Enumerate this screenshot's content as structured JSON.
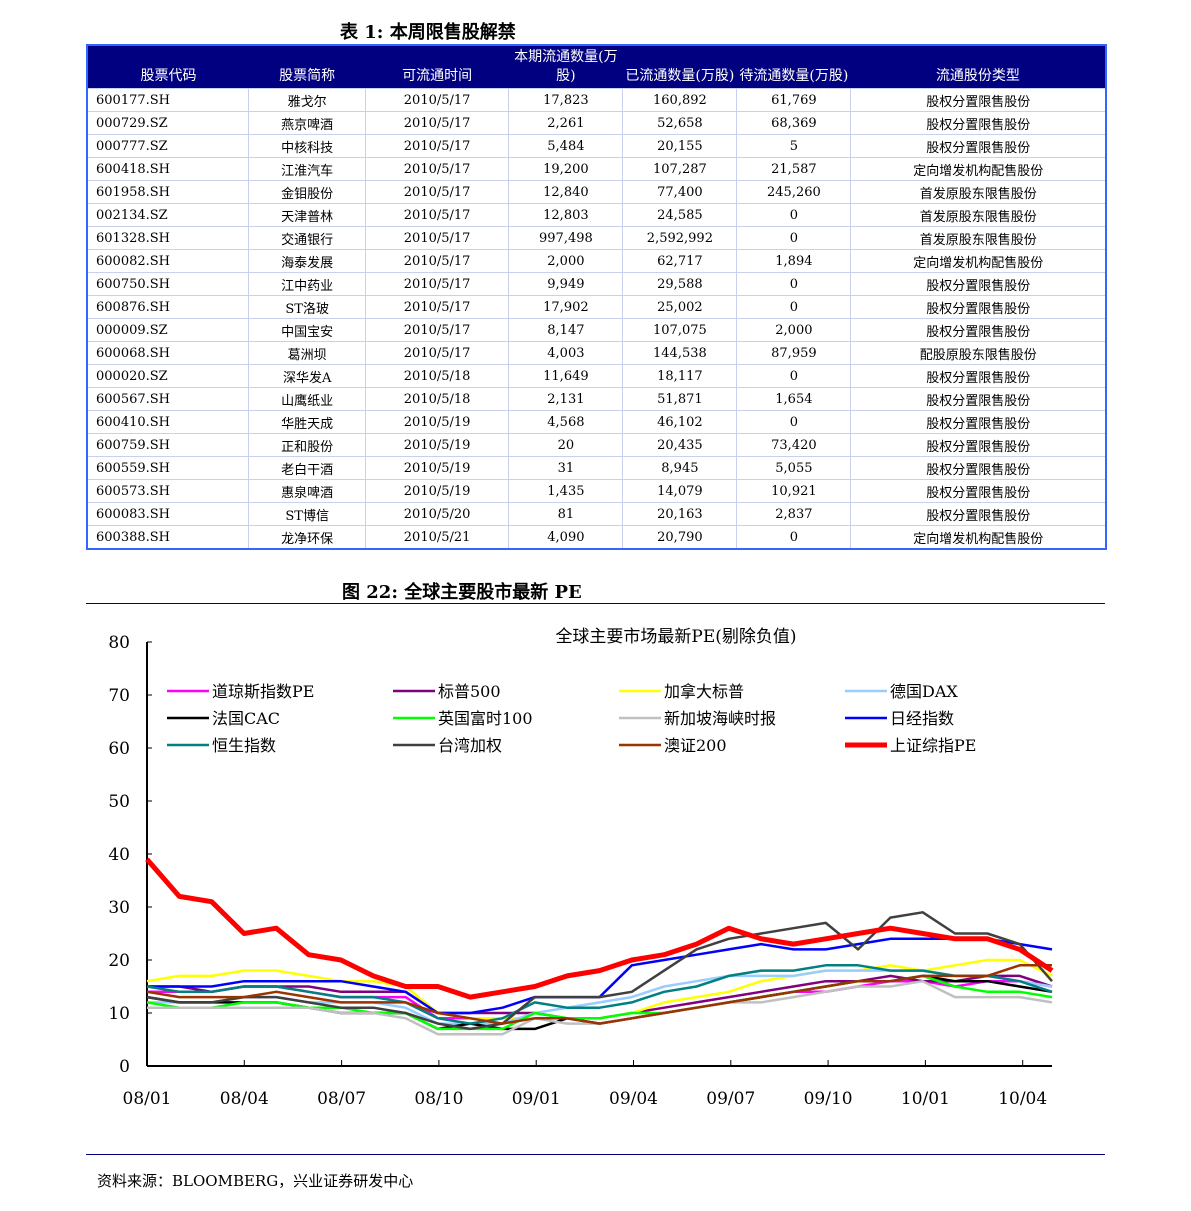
{
  "table": {
    "title": "表 1: 本周限售股解禁",
    "headers": [
      "股票代码",
      "股票简称",
      "可流通时间",
      "本期流通数量(万股)",
      "已流通数量(万股)",
      "待流通数量(万股)",
      "流通股份类型"
    ],
    "rows": [
      [
        "600177.SH",
        "雅戈尔",
        "2010/5/17",
        "17,823",
        "160,892",
        "61,769",
        "股权分置限售股份"
      ],
      [
        "000729.SZ",
        "燕京啤酒",
        "2010/5/17",
        "2,261",
        "52,658",
        "68,369",
        "股权分置限售股份"
      ],
      [
        "000777.SZ",
        "中核科技",
        "2010/5/17",
        "5,484",
        "20,155",
        "5",
        "股权分置限售股份"
      ],
      [
        "600418.SH",
        "江淮汽车",
        "2010/5/17",
        "19,200",
        "107,287",
        "21,587",
        "定向增发机构配售股份"
      ],
      [
        "601958.SH",
        "金钼股份",
        "2010/5/17",
        "12,840",
        "77,400",
        "245,260",
        "首发原股东限售股份"
      ],
      [
        "002134.SZ",
        "天津普林",
        "2010/5/17",
        "12,803",
        "24,585",
        "0",
        "首发原股东限售股份"
      ],
      [
        "601328.SH",
        "交通银行",
        "2010/5/17",
        "997,498",
        "2,592,992",
        "0",
        "首发原股东限售股份"
      ],
      [
        "600082.SH",
        "海泰发展",
        "2010/5/17",
        "2,000",
        "62,717",
        "1,894",
        "定向增发机构配售股份"
      ],
      [
        "600750.SH",
        "江中药业",
        "2010/5/17",
        "9,949",
        "29,588",
        "0",
        "股权分置限售股份"
      ],
      [
        "600876.SH",
        "ST洛玻",
        "2010/5/17",
        "17,902",
        "25,002",
        "0",
        "股权分置限售股份"
      ],
      [
        "000009.SZ",
        "中国宝安",
        "2010/5/17",
        "8,147",
        "107,075",
        "2,000",
        "股权分置限售股份"
      ],
      [
        "600068.SH",
        "葛洲坝",
        "2010/5/17",
        "4,003",
        "144,538",
        "87,959",
        "配股原股东限售股份"
      ],
      [
        "000020.SZ",
        "深华发A",
        "2010/5/18",
        "11,649",
        "18,117",
        "0",
        "股权分置限售股份"
      ],
      [
        "600567.SH",
        "山鹰纸业",
        "2010/5/18",
        "2,131",
        "51,871",
        "1,654",
        "股权分置限售股份"
      ],
      [
        "600410.SH",
        "华胜天成",
        "2010/5/19",
        "4,568",
        "46,102",
        "0",
        "股权分置限售股份"
      ],
      [
        "600759.SH",
        "正和股份",
        "2010/5/19",
        "20",
        "20,435",
        "73,420",
        "股权分置限售股份"
      ],
      [
        "600559.SH",
        "老白干酒",
        "2010/5/19",
        "31",
        "8,945",
        "5,055",
        "股权分置限售股份"
      ],
      [
        "600573.SH",
        "惠泉啤酒",
        "2010/5/19",
        "1,435",
        "14,079",
        "10,921",
        "股权分置限售股份"
      ],
      [
        "600083.SH",
        "ST博信",
        "2010/5/20",
        "81",
        "20,163",
        "2,837",
        "股权分置限售股份"
      ],
      [
        "600388.SH",
        "龙净环保",
        "2010/5/21",
        "4,090",
        "20,790",
        "0",
        "定向增发机构配售股份"
      ]
    ]
  },
  "figure": {
    "title": "图 22: 全球主要股市最新 PE"
  },
  "chart_data": {
    "type": "line",
    "title": "全球主要市场最新PE(剔除负值)",
    "ylim": [
      0,
      80
    ],
    "yticks": [
      0,
      10,
      20,
      30,
      40,
      50,
      60,
      70,
      80
    ],
    "xticklabels": [
      "08/01",
      "08/04",
      "08/07",
      "08/10",
      "09/01",
      "09/04",
      "09/07",
      "09/10",
      "10/01",
      "10/04"
    ],
    "x": [
      "08/01",
      "08/02",
      "08/03",
      "08/04",
      "08/05",
      "08/06",
      "08/07",
      "08/08",
      "08/09",
      "08/10",
      "08/11",
      "08/12",
      "09/01",
      "09/02",
      "09/03",
      "09/04",
      "09/05",
      "09/06",
      "09/07",
      "09/08",
      "09/09",
      "09/10",
      "09/11",
      "09/12",
      "10/01",
      "10/02",
      "10/03",
      "10/04",
      "10/05"
    ],
    "legend": "top, 4 columns",
    "series": [
      {
        "name": "道琼斯指数PE",
        "color": "#ff00ff",
        "values": [
          14,
          14,
          14,
          15,
          15,
          14,
          13,
          13,
          13,
          9,
          9,
          9,
          9,
          9,
          8,
          9,
          10,
          11,
          12,
          13,
          14,
          14,
          15,
          16,
          16,
          15,
          16,
          16,
          15
        ]
      },
      {
        "name": "标普500",
        "color": "#800080",
        "values": [
          15,
          15,
          14,
          15,
          15,
          15,
          14,
          14,
          14,
          10,
          10,
          10,
          10,
          9,
          9,
          10,
          11,
          12,
          13,
          14,
          15,
          16,
          16,
          17,
          16,
          16,
          17,
          17,
          15
        ]
      },
      {
        "name": "加拿大标普",
        "color": "#ffff00",
        "values": [
          16,
          17,
          17,
          18,
          18,
          17,
          16,
          16,
          15,
          10,
          9,
          9,
          9,
          9,
          9,
          10,
          12,
          13,
          14,
          16,
          17,
          18,
          18,
          19,
          18,
          19,
          20,
          20,
          17
        ]
      },
      {
        "name": "德国DAX",
        "color": "#99ccff",
        "values": [
          12,
          12,
          12,
          13,
          13,
          12,
          12,
          12,
          11,
          8,
          8,
          8,
          10,
          11,
          12,
          13,
          15,
          16,
          17,
          17,
          17,
          18,
          18,
          18,
          18,
          17,
          17,
          16,
          15
        ]
      },
      {
        "name": "法国CAC",
        "color": "#000000",
        "values": [
          13,
          12,
          12,
          12,
          12,
          11,
          10,
          10,
          10,
          7,
          8,
          7,
          7,
          9,
          8,
          9,
          10,
          11,
          12,
          13,
          14,
          15,
          16,
          16,
          17,
          16,
          16,
          15,
          14
        ]
      },
      {
        "name": "英国富时100",
        "color": "#00ff00",
        "values": [
          12,
          11,
          11,
          12,
          12,
          11,
          11,
          10,
          10,
          7,
          7,
          7,
          10,
          9,
          9,
          10,
          10,
          11,
          12,
          13,
          14,
          15,
          16,
          16,
          17,
          15,
          14,
          14,
          13
        ]
      },
      {
        "name": "新加坡海峡时报",
        "color": "#c0c0c0",
        "values": [
          11,
          11,
          11,
          11,
          11,
          11,
          10,
          10,
          9,
          6,
          6,
          6,
          9,
          8,
          8,
          9,
          10,
          11,
          12,
          12,
          13,
          14,
          15,
          15,
          16,
          13,
          13,
          13,
          12
        ]
      },
      {
        "name": "日经指数",
        "color": "#0000ff",
        "values": [
          15,
          15,
          15,
          16,
          16,
          16,
          16,
          15,
          14,
          10,
          10,
          11,
          13,
          13,
          13,
          19,
          20,
          21,
          22,
          23,
          22,
          22,
          23,
          24,
          24,
          24,
          24,
          23,
          22
        ]
      },
      {
        "name": "恒生指数",
        "color": "#008080",
        "values": [
          15,
          14,
          14,
          15,
          15,
          14,
          13,
          13,
          12,
          9,
          8,
          9,
          12,
          11,
          11,
          12,
          14,
          15,
          17,
          18,
          18,
          19,
          19,
          18,
          18,
          17,
          17,
          16,
          14
        ]
      },
      {
        "name": "台湾加权",
        "color": "#404040",
        "values": [
          13,
          12,
          12,
          13,
          13,
          12,
          11,
          11,
          10,
          8,
          7,
          8,
          13,
          13,
          13,
          14,
          18,
          22,
          24,
          25,
          26,
          27,
          22,
          28,
          29,
          25,
          25,
          23,
          16
        ]
      },
      {
        "name": "澳证200",
        "color": "#993300",
        "values": [
          14,
          13,
          13,
          13,
          14,
          13,
          12,
          12,
          12,
          10,
          9,
          8,
          9,
          9,
          8,
          9,
          10,
          11,
          12,
          13,
          14,
          15,
          16,
          16,
          17,
          17,
          17,
          19,
          19
        ]
      },
      {
        "name": "上证综指PE",
        "color": "#ff0000",
        "values": [
          39,
          32,
          31,
          25,
          26,
          21,
          20,
          17,
          15,
          15,
          13,
          14,
          15,
          17,
          18,
          20,
          21,
          23,
          26,
          24,
          23,
          24,
          25,
          26,
          25,
          24,
          24,
          22,
          18
        ]
      }
    ]
  },
  "source": "资料来源：BLOOMBERG，兴业证券研发中心"
}
